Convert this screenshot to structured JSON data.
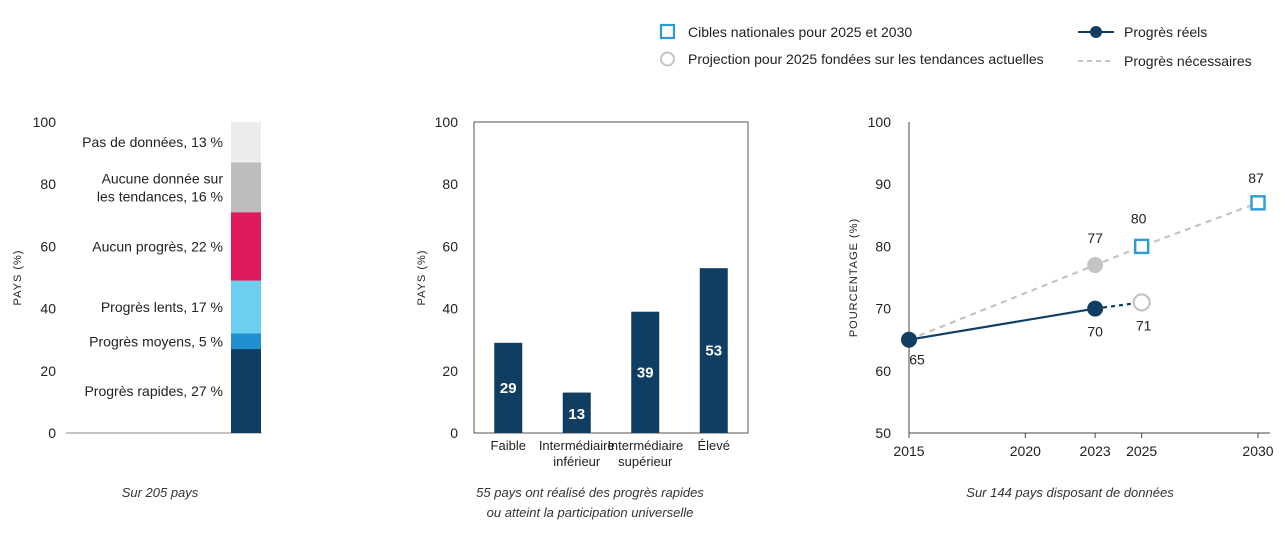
{
  "legend": {
    "targets": "Cibles nationales pour 2025 et 2030",
    "projection": "Projection pour 2025 fondées sur les tendances actuelles",
    "actual": "Progrès réels",
    "needed": "Progrès nécessaires"
  },
  "colors": {
    "dark_navy": "#0f3e62",
    "mid_blue": "#1f8fd0",
    "light_blue": "#6ccff0",
    "magenta": "#dc1a5c",
    "grey": "#bdbdbd",
    "light_grey": "#ececec",
    "target_blue": "#2b9bd1",
    "projection_grey": "#c4c4c4"
  },
  "captions": {
    "left": "Sur 205 pays",
    "middle_line1": "55 pays ont réalisé des progrès rapides",
    "middle_line2": "ou atteint la participation universelle",
    "right": "Sur 144 pays disposant de données"
  },
  "chart_data": [
    {
      "type": "bar",
      "subtype": "stacked",
      "ylabel": "PAYS (%)",
      "ylim": [
        0,
        100
      ],
      "yticks": [
        0,
        20,
        40,
        60,
        80,
        100
      ],
      "segments": [
        {
          "label": "Progrès rapides, 27 %",
          "value": 27,
          "color_key": "dark_navy"
        },
        {
          "label": "Progrès moyens, 5 %",
          "value": 5,
          "color_key": "mid_blue"
        },
        {
          "label": "Progrès lents, 17 %",
          "value": 17,
          "color_key": "light_blue"
        },
        {
          "label": "Aucun progrès, 22 %",
          "value": 22,
          "color_key": "magenta"
        },
        {
          "label_lines": [
            "Aucune donnée sur",
            "les tendances, 16 %"
          ],
          "value": 16,
          "color_key": "grey"
        },
        {
          "label": "Pas de données, 13 %",
          "value": 13,
          "color_key": "light_grey"
        }
      ]
    },
    {
      "type": "bar",
      "ylabel": "PAYS (%)",
      "ylim": [
        0,
        100
      ],
      "yticks": [
        0,
        20,
        40,
        60,
        80,
        100
      ],
      "categories": [
        [
          "Faible"
        ],
        [
          "Intermédiaire",
          "inférieur"
        ],
        [
          "Intermédiaire",
          "supérieur"
        ],
        [
          "Élevé"
        ]
      ],
      "values": [
        29,
        13,
        39,
        53
      ]
    },
    {
      "type": "line",
      "ylabel": "POURCENTAGE (%)",
      "ylim": [
        50,
        100
      ],
      "yticks": [
        50,
        60,
        70,
        80,
        90,
        100
      ],
      "xlim": [
        2015,
        2030
      ],
      "xticks": [
        2015,
        2020,
        2023,
        2025,
        2030
      ],
      "series": [
        {
          "name": "Progrès réels",
          "x": [
            2015,
            2023
          ],
          "y": [
            65,
            70
          ],
          "labels": [
            "65",
            "70"
          ]
        },
        {
          "name": "Progrès nécessaires",
          "x": [
            2015,
            2023,
            2025,
            2030
          ],
          "y": [
            65,
            77,
            80,
            87
          ],
          "labels": [
            "",
            "77",
            "80",
            "87"
          ]
        },
        {
          "name": "Projection pour 2025 fondées sur les tendances actuelles",
          "x": [
            2023,
            2025
          ],
          "y": [
            70,
            71
          ],
          "labels": [
            "",
            "71"
          ]
        }
      ]
    }
  ]
}
